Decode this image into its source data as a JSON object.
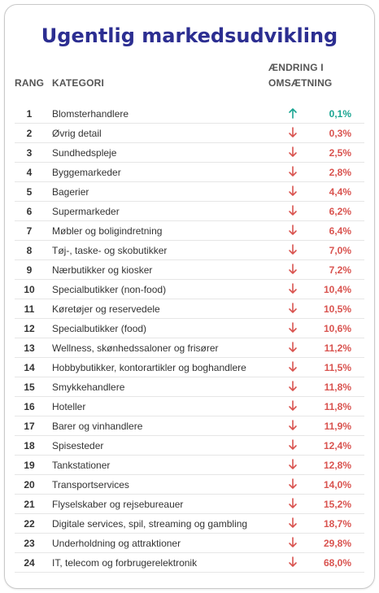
{
  "title": "Ugentlig markedsudvikling",
  "headers": {
    "rank": "RANG",
    "category": "KATEGORI",
    "change_line1": "ÆNDRING I",
    "change_line2": "OMSÆTNING"
  },
  "colors": {
    "up": "#1aa592",
    "down": "#d9534f",
    "title": "#2c2e91"
  },
  "chart_data": {
    "type": "table",
    "columns": [
      "RANG",
      "KATEGORI",
      "ÆNDRING I OMSÆTNING"
    ],
    "rows": [
      {
        "rank": "1",
        "category": "Blomsterhandlere",
        "direction": "up",
        "change": "0,1%"
      },
      {
        "rank": "2",
        "category": "Øvrig detail",
        "direction": "down",
        "change": "0,3%"
      },
      {
        "rank": "3",
        "category": "Sundhedspleje",
        "direction": "down",
        "change": "2,5%"
      },
      {
        "rank": "4",
        "category": "Byggemarkeder",
        "direction": "down",
        "change": "2,8%"
      },
      {
        "rank": "5",
        "category": "Bagerier",
        "direction": "down",
        "change": "4,4%"
      },
      {
        "rank": "6",
        "category": "Supermarkeder",
        "direction": "down",
        "change": "6,2%"
      },
      {
        "rank": "7",
        "category": "Møbler og boligindretning",
        "direction": "down",
        "change": "6,4%"
      },
      {
        "rank": "8",
        "category": "Tøj-, taske- og skobutikker",
        "direction": "down",
        "change": "7,0%"
      },
      {
        "rank": "9",
        "category": "Nærbutikker og kiosker",
        "direction": "down",
        "change": "7,2%"
      },
      {
        "rank": "10",
        "category": "Specialbutikker (non-food)",
        "direction": "down",
        "change": "10,4%"
      },
      {
        "rank": "11",
        "category": "Køretøjer og reservedele",
        "direction": "down",
        "change": "10,5%"
      },
      {
        "rank": "12",
        "category": "Specialbutikker (food)",
        "direction": "down",
        "change": "10,6%"
      },
      {
        "rank": "13",
        "category": "Wellness, skønhedssaloner og frisører",
        "direction": "down",
        "change": "11,2%"
      },
      {
        "rank": "14",
        "category": "Hobbybutikker, kontorartikler og boghandlere",
        "direction": "down",
        "change": "11,5%"
      },
      {
        "rank": "15",
        "category": "Smykkehandlere",
        "direction": "down",
        "change": "11,8%"
      },
      {
        "rank": "16",
        "category": "Hoteller",
        "direction": "down",
        "change": "11,8%"
      },
      {
        "rank": "17",
        "category": "Barer og vinhandlere",
        "direction": "down",
        "change": "11,9%"
      },
      {
        "rank": "18",
        "category": "Spisesteder",
        "direction": "down",
        "change": "12,4%"
      },
      {
        "rank": "19",
        "category": "Tankstationer",
        "direction": "down",
        "change": "12,8%"
      },
      {
        "rank": "20",
        "category": "Transportservices",
        "direction": "down",
        "change": "14,0%"
      },
      {
        "rank": "21",
        "category": "Flyselskaber og rejsebureauer",
        "direction": "down",
        "change": "15,2%"
      },
      {
        "rank": "22",
        "category": "Digitale services, spil, streaming og gambling",
        "direction": "down",
        "change": "18,7%"
      },
      {
        "rank": "23",
        "category": "Underholdning og attraktioner",
        "direction": "down",
        "change": "29,8%"
      },
      {
        "rank": "24",
        "category": "IT, telecom og forbrugerelektronik",
        "direction": "down",
        "change": "68,0%"
      }
    ]
  }
}
